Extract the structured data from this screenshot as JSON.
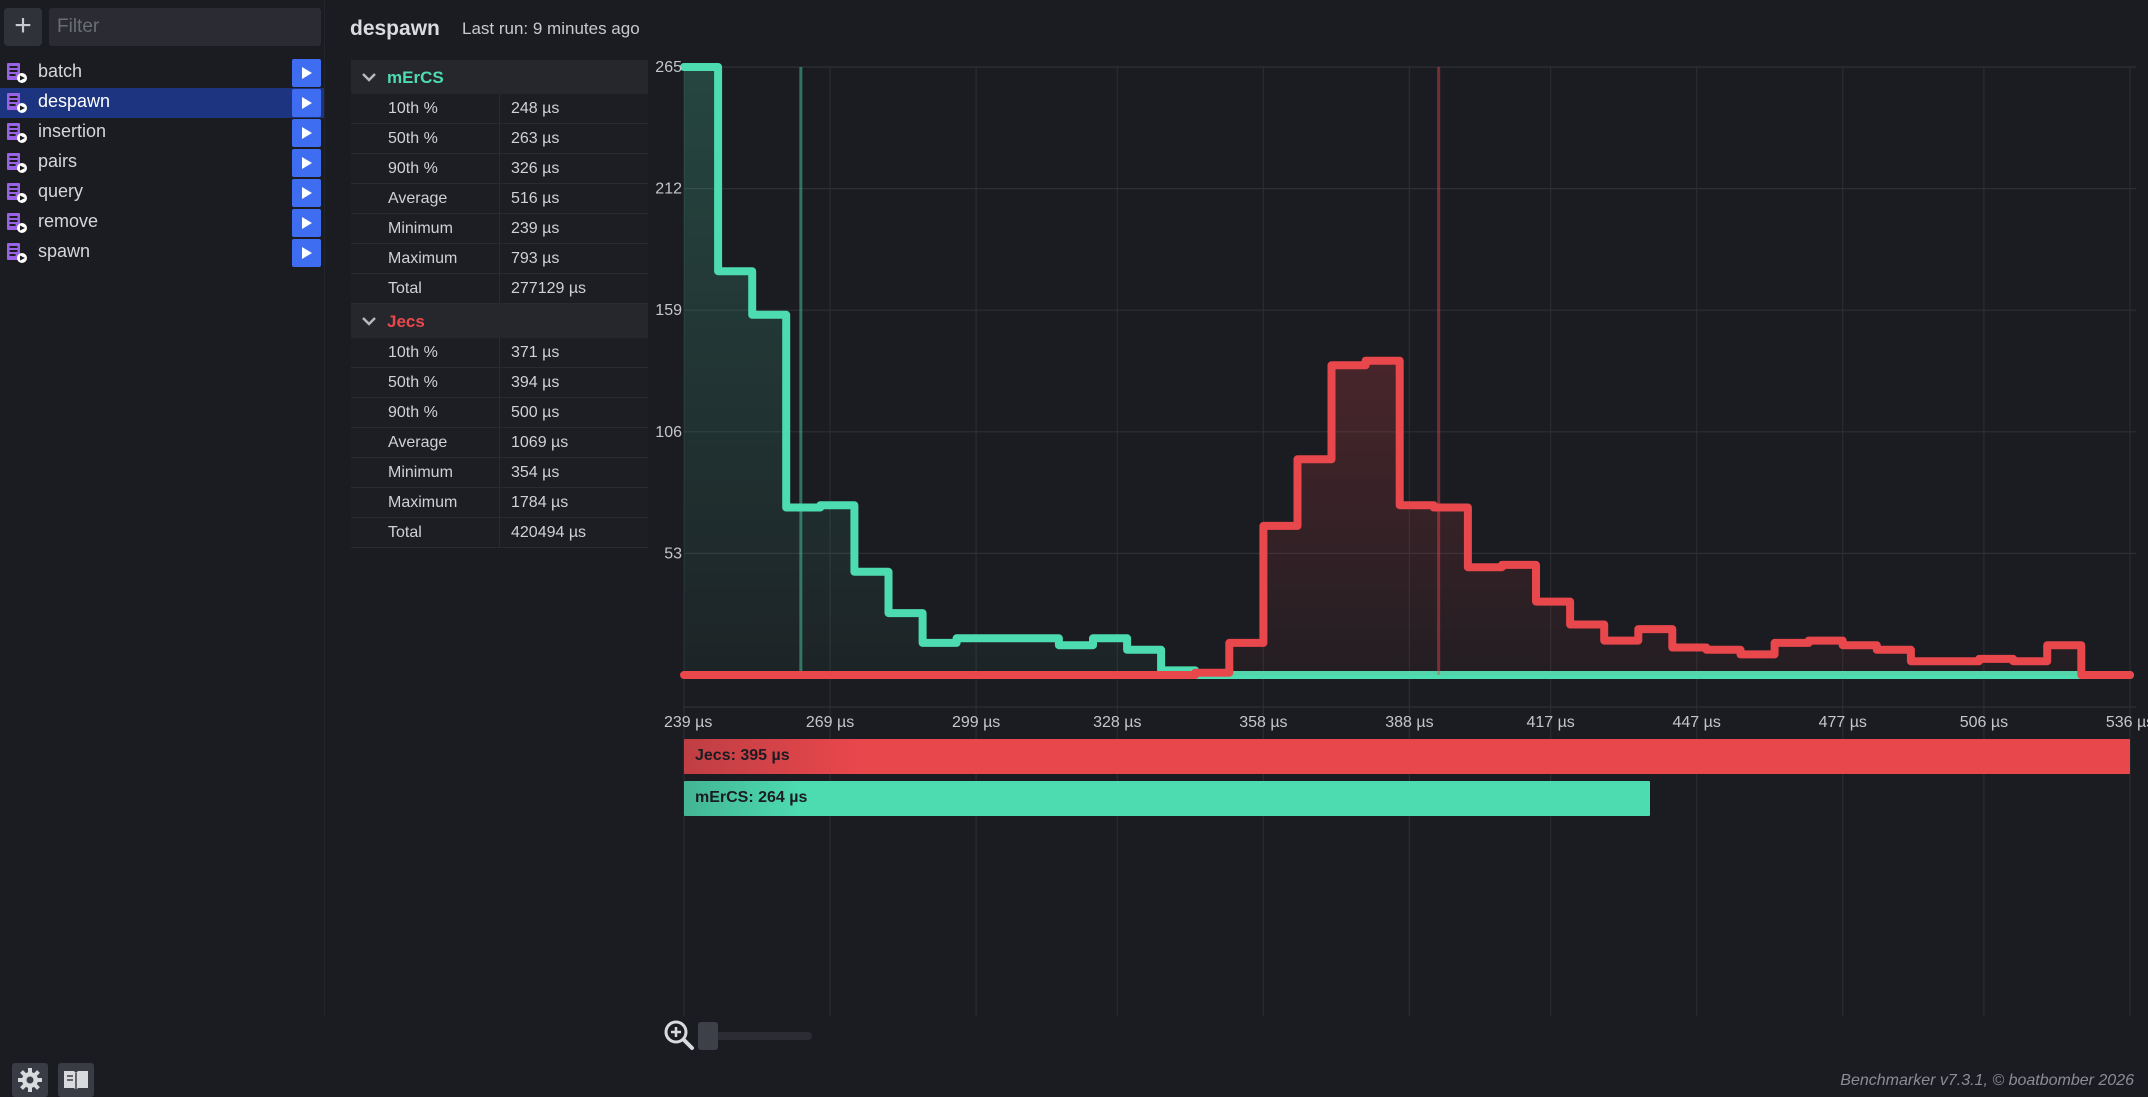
{
  "sidebar": {
    "add_label": "+",
    "filter_placeholder": "Filter",
    "items": [
      {
        "label": "batch"
      },
      {
        "label": "despawn",
        "active": true
      },
      {
        "label": "insertion"
      },
      {
        "label": "pairs"
      },
      {
        "label": "query"
      },
      {
        "label": "remove"
      },
      {
        "label": "spawn"
      }
    ]
  },
  "header": {
    "title": "despawn",
    "last_run": "Last run: 9 minutes ago"
  },
  "groups": [
    {
      "name": "mErCS",
      "color": "#4ddbb0",
      "rows": [
        {
          "label": "10th %",
          "value": "248 µs"
        },
        {
          "label": "50th %",
          "value": "263 µs"
        },
        {
          "label": "90th %",
          "value": "326 µs"
        },
        {
          "label": "Average",
          "value": "516 µs"
        },
        {
          "label": "Minimum",
          "value": "239 µs"
        },
        {
          "label": "Maximum",
          "value": "793 µs"
        },
        {
          "label": "Total",
          "value": "277129 µs"
        }
      ]
    },
    {
      "name": "Jecs",
      "color": "#e8474c",
      "rows": [
        {
          "label": "10th %",
          "value": "371 µs"
        },
        {
          "label": "50th %",
          "value": "394 µs"
        },
        {
          "label": "90th %",
          "value": "500 µs"
        },
        {
          "label": "Average",
          "value": "1069 µs"
        },
        {
          "label": "Minimum",
          "value": "354 µs"
        },
        {
          "label": "Maximum",
          "value": "1784 µs"
        },
        {
          "label": "Total",
          "value": "420494 µs"
        }
      ]
    }
  ],
  "results": [
    {
      "label": "Jecs: 395 µs",
      "value": 395,
      "color": "#e8474c"
    },
    {
      "label": "mErCS: 264 µs",
      "value": 264,
      "color": "#4ddbb0"
    }
  ],
  "chart_data": {
    "type": "line",
    "step": true,
    "x_tick_labels": [
      "239 µs",
      "269 µs",
      "299 µs",
      "328 µs",
      "358 µs",
      "388 µs",
      "417 µs",
      "447 µs",
      "477 µs",
      "506 µs",
      "536 µs"
    ],
    "y_tick_labels": [
      "265",
      "212",
      "159",
      "106",
      "53"
    ],
    "xlim": [
      239,
      536
    ],
    "ylim": [
      0,
      265
    ],
    "grid": true,
    "series": [
      {
        "name": "mErCS",
        "color": "#4ddbb0",
        "x": [
          239,
          246,
          253,
          260,
          267,
          274,
          281,
          288,
          295,
          302,
          309,
          316,
          323,
          330,
          337,
          344,
          351,
          358,
          365,
          372,
          379,
          386,
          393,
          400,
          407,
          414,
          421,
          428,
          435,
          442,
          449,
          456,
          463,
          470,
          477,
          484,
          491,
          498,
          505,
          512,
          519,
          526,
          533
        ],
        "values": [
          265,
          176,
          157,
          73,
          74,
          45,
          27,
          14,
          16,
          16,
          16,
          13,
          16,
          11,
          2,
          0,
          0,
          0,
          0,
          0,
          0,
          0,
          0,
          0,
          0,
          0,
          0,
          0,
          0,
          0,
          0,
          0,
          0,
          0,
          0,
          0,
          0,
          0,
          0,
          0,
          0,
          0,
          0
        ],
        "percentile_marker": 263
      },
      {
        "name": "Jecs",
        "color": "#e8474c",
        "x": [
          239,
          246,
          253,
          260,
          267,
          274,
          281,
          288,
          295,
          302,
          309,
          316,
          323,
          330,
          337,
          344,
          351,
          358,
          365,
          372,
          379,
          386,
          393,
          400,
          407,
          414,
          421,
          428,
          435,
          442,
          449,
          456,
          463,
          470,
          477,
          484,
          491,
          498,
          505,
          512,
          519,
          526,
          533
        ],
        "values": [
          0,
          0,
          0,
          0,
          0,
          0,
          0,
          0,
          0,
          0,
          0,
          0,
          0,
          0,
          0,
          1,
          14,
          65,
          94,
          135,
          137,
          74,
          73,
          47,
          48,
          32,
          22,
          15,
          20,
          12,
          11,
          9,
          14,
          15,
          13,
          11,
          6,
          6,
          7,
          6,
          13,
          0,
          0
        ],
        "percentile_marker": 394
      }
    ]
  },
  "footer": {
    "credits": "Benchmarker v7.3.1, © boatbomber 2026"
  },
  "icons": {
    "add": "plus-icon",
    "benchmark_file": "script-file-icon",
    "run": "play-icon",
    "collapse": "chevron-down-icon",
    "zoom": "zoom-in-icon",
    "settings": "gear-icon",
    "docs": "book-icon"
  }
}
